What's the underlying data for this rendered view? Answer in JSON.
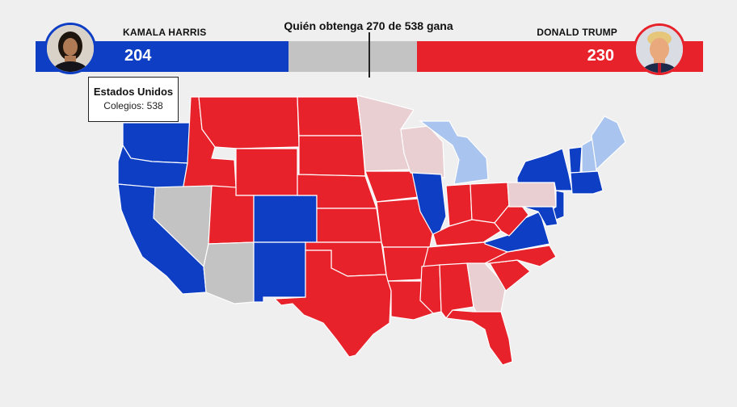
{
  "header": {
    "threshold_text": "Quién obtenga 270 de 538 gana",
    "left": {
      "name": "KAMALA HARRIS",
      "votes": "204"
    },
    "right": {
      "name": "DONALD TRUMP",
      "votes": "230"
    }
  },
  "tooltip": {
    "title": "Estados Unidos",
    "subtitle": "Colegios: 538"
  },
  "colors": {
    "dem": "#0d3ec4",
    "dem_lean": "#a9c4ee",
    "rep": "#e8222b",
    "rep_lean": "#e9cfd1",
    "undecided": "#c3c3c3",
    "background": "#efefef"
  },
  "electoral_votes_total": 538,
  "threshold": 270
}
